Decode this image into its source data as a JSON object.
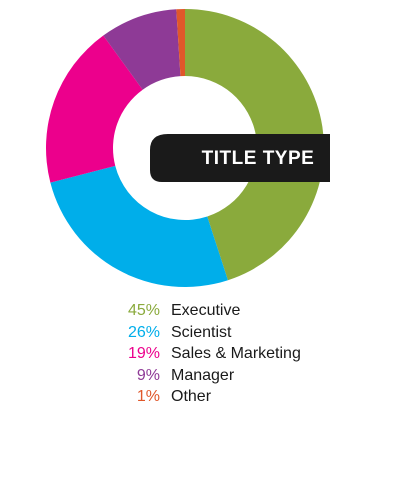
{
  "chart_data": {
    "type": "pie",
    "style": "donut",
    "title": "TITLE TYPE",
    "slices": [
      {
        "label": "Executive",
        "percent_label": "45%",
        "value": 45,
        "color": "#8aaa3c"
      },
      {
        "label": "Scientist",
        "percent_label": "26%",
        "value": 26,
        "color": "#00aeea"
      },
      {
        "label": "Sales & Marketing",
        "percent_label": "19%",
        "value": 19,
        "color": "#ec008c"
      },
      {
        "label": "Manager",
        "percent_label": "9%",
        "value": 9,
        "color": "#8e3a96"
      },
      {
        "label": "Other",
        "percent_label": "1%",
        "value": 1,
        "color": "#e0572a"
      }
    ],
    "legend_position": "bottom",
    "title_badge_color": "#1a1a1a"
  }
}
